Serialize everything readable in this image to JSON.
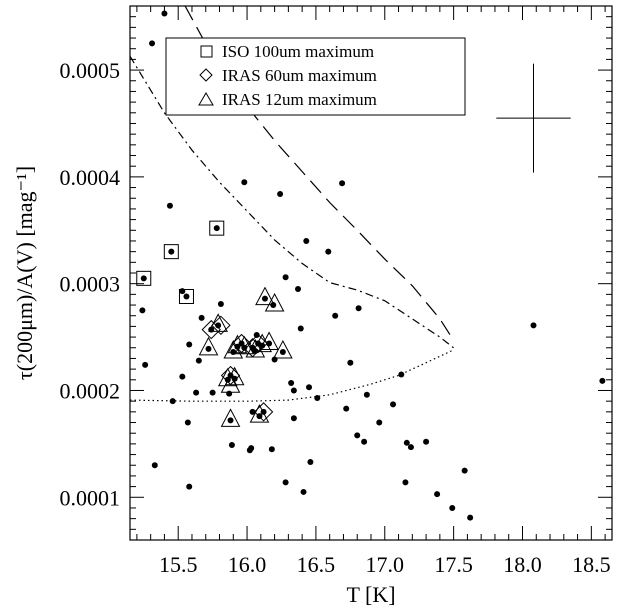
{
  "chart_data": {
    "type": "scatter",
    "xlabel": "T [K]",
    "ylabel": "τ(200μm)/A(V) [mag⁻¹]",
    "xlim": [
      15.15,
      18.65
    ],
    "ylim": [
      6e-05,
      0.00056
    ],
    "x_ticks": [
      15.5,
      16.0,
      16.5,
      17.0,
      17.5,
      18.0,
      18.5
    ],
    "x_tick_labels": [
      "15.5",
      "16.0",
      "16.5",
      "17.0",
      "17.5",
      "18.0",
      "18.5"
    ],
    "y_ticks": [
      0.0001,
      0.0002,
      0.0003,
      0.0004,
      0.0005
    ],
    "y_tick_labels": [
      "0.0001",
      "0.0002",
      "0.0003",
      "0.0004",
      "0.0005"
    ],
    "legend": {
      "placement": "top-left",
      "entries": [
        {
          "label": "ISO 100um maximum",
          "marker": "square"
        },
        {
          "label": "IRAS 60um maximum",
          "marker": "diamond"
        },
        {
          "label": "IRAS 12um maximum",
          "marker": "triangle"
        }
      ]
    },
    "points": [
      [
        15.4,
        0.000553
      ],
      [
        15.31,
        0.000525
      ],
      [
        15.25,
        0.000305
      ],
      [
        15.45,
        0.00033
      ],
      [
        15.56,
        0.000288
      ],
      [
        15.78,
        0.000352
      ],
      [
        15.44,
        0.000373
      ],
      [
        15.53,
        0.000293
      ],
      [
        15.24,
        0.000275
      ],
      [
        15.26,
        0.000224
      ],
      [
        15.33,
        0.00013
      ],
      [
        15.58,
        0.00011
      ],
      [
        15.58,
        0.000243
      ],
      [
        15.53,
        0.000213
      ],
      [
        15.67,
        0.000268
      ],
      [
        15.63,
        0.000198
      ],
      [
        15.65,
        0.000228
      ],
      [
        15.74,
        0.000257
      ],
      [
        15.81,
        0.000281
      ],
      [
        15.79,
        0.000261
      ],
      [
        15.72,
        0.000239
      ],
      [
        15.75,
        0.000198
      ],
      [
        15.9,
        0.000236
      ],
      [
        15.87,
        0.000197
      ],
      [
        15.86,
        0.00021
      ],
      [
        15.88,
        0.000214
      ],
      [
        15.91,
        0.000211
      ],
      [
        15.93,
        0.000241
      ],
      [
        15.96,
        0.000244
      ],
      [
        15.98,
        0.00024
      ],
      [
        16.04,
        0.00024
      ],
      [
        16.06,
        0.000237
      ],
      [
        16.08,
        0.000244
      ],
      [
        16.11,
        0.000242
      ],
      [
        16.16,
        0.000244
      ],
      [
        16.2,
        0.000229
      ],
      [
        16.19,
        0.00028
      ],
      [
        16.13,
        0.000286
      ],
      [
        16.07,
        0.000252
      ],
      [
        16.12,
        0.00018
      ],
      [
        16.09,
        0.000176
      ],
      [
        16.04,
        0.00018
      ],
      [
        16.03,
        0.000146
      ],
      [
        16.18,
        0.000145
      ],
      [
        15.88,
        0.000172
      ],
      [
        15.89,
        0.000149
      ],
      [
        15.98,
        0.000395
      ],
      [
        16.24,
        0.000384
      ],
      [
        16.69,
        0.000394
      ],
      [
        16.43,
        0.00034
      ],
      [
        16.28,
        0.000306
      ],
      [
        16.37,
        0.000295
      ],
      [
        16.59,
        0.00033
      ],
      [
        16.39,
        0.000258
      ],
      [
        16.26,
        0.000236
      ],
      [
        16.32,
        0.000207
      ],
      [
        16.34,
        0.0002
      ],
      [
        16.45,
        0.000203
      ],
      [
        16.51,
        0.000193
      ],
      [
        16.64,
        0.00027
      ],
      [
        16.75,
        0.000226
      ],
      [
        16.81,
        0.000277
      ],
      [
        16.72,
        0.000183
      ],
      [
        16.87,
        0.000196
      ],
      [
        16.85,
        0.000152
      ],
      [
        16.8,
        0.000158
      ],
      [
        16.96,
        0.00017
      ],
      [
        17.06,
        0.000187
      ],
      [
        17.12,
        0.000215
      ],
      [
        17.16,
        0.000151
      ],
      [
        17.19,
        0.000147
      ],
      [
        17.3,
        0.000152
      ],
      [
        17.38,
        0.000103
      ],
      [
        17.49,
        9e-05
      ],
      [
        17.62,
        8.1e-05
      ],
      [
        17.58,
        0.000125
      ],
      [
        17.15,
        0.000114
      ],
      [
        16.46,
        0.000133
      ],
      [
        16.41,
        0.000105
      ],
      [
        16.28,
        0.000114
      ],
      [
        16.34,
        0.000174
      ],
      [
        16.02,
        0.000144
      ],
      [
        18.08,
        0.000261
      ],
      [
        18.58,
        0.000209
      ],
      [
        15.46,
        0.00019
      ],
      [
        15.57,
        0.00017
      ]
    ],
    "iso100_squares": [
      [
        15.25,
        0.000305
      ],
      [
        15.45,
        0.00033
      ],
      [
        15.56,
        0.000288
      ],
      [
        15.78,
        0.000352
      ]
    ],
    "iras60_diamonds": [
      [
        15.74,
        0.000257
      ],
      [
        15.81,
        0.000261
      ],
      [
        15.88,
        0.000214
      ],
      [
        15.96,
        0.000244
      ],
      [
        16.04,
        0.00024
      ],
      [
        16.08,
        0.000244
      ],
      [
        16.12,
        0.00018
      ]
    ],
    "iras12_triangles": [
      [
        15.79,
        0.000261
      ],
      [
        15.72,
        0.000239
      ],
      [
        15.9,
        0.000236
      ],
      [
        15.86,
        0.00021
      ],
      [
        15.91,
        0.000211
      ],
      [
        15.93,
        0.000241
      ],
      [
        15.98,
        0.00024
      ],
      [
        16.06,
        0.000237
      ],
      [
        16.11,
        0.000242
      ],
      [
        16.16,
        0.000244
      ],
      [
        16.26,
        0.000236
      ],
      [
        16.13,
        0.000286
      ],
      [
        16.2,
        0.00028
      ],
      [
        16.09,
        0.000176
      ],
      [
        15.88,
        0.000172
      ],
      [
        15.88,
        0.000204
      ]
    ],
    "curve_dashed": [
      [
        15.55,
        0.00056
      ],
      [
        15.8,
        0.000501
      ],
      [
        16.0,
        0.000466
      ],
      [
        16.2,
        0.000434
      ],
      [
        16.4,
        0.000405
      ],
      [
        16.6,
        0.000376
      ],
      [
        16.8,
        0.00035
      ],
      [
        17.0,
        0.000323
      ],
      [
        17.2,
        0.000298
      ],
      [
        17.4,
        0.000267
      ],
      [
        17.5,
        0.000247
      ]
    ],
    "curve_dashdot": [
      [
        15.15,
        0.000513
      ],
      [
        15.4,
        0.00046
      ],
      [
        15.6,
        0.000425
      ],
      [
        15.8,
        0.000395
      ],
      [
        16.0,
        0.000368
      ],
      [
        16.2,
        0.000341
      ],
      [
        16.4,
        0.000319
      ],
      [
        16.6,
        0.000301
      ],
      [
        16.8,
        0.000294
      ],
      [
        17.0,
        0.000284
      ],
      [
        17.2,
        0.000267
      ],
      [
        17.4,
        0.00025
      ],
      [
        17.5,
        0.00024
      ]
    ],
    "curve_dotted": [
      [
        15.15,
        0.000191
      ],
      [
        15.6,
        0.00019
      ],
      [
        16.0,
        0.00019
      ],
      [
        16.3,
        0.000191
      ],
      [
        16.6,
        0.000196
      ],
      [
        16.9,
        0.000206
      ],
      [
        17.1,
        0.000214
      ],
      [
        17.3,
        0.000226
      ],
      [
        17.5,
        0.000238
      ]
    ],
    "error_bar": {
      "x": 18.08,
      "y": 0.000455,
      "x_err": 0.27,
      "y_err": 5.1e-05
    }
  }
}
